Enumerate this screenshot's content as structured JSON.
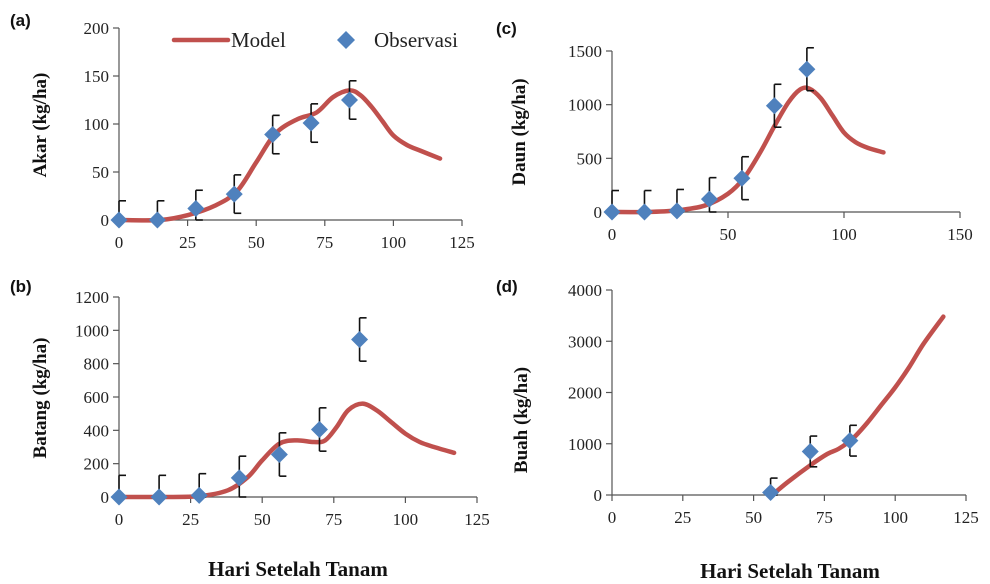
{
  "legend": {
    "model_label": "Model",
    "obs_label": "Observasi"
  },
  "xlabel_bottom": "Hari Setelah Tanam",
  "colors": {
    "model": "#c0504d",
    "observation": "#4f81bd",
    "errorbar": "#111111"
  },
  "chart_data": [
    {
      "id": "a",
      "panel_label": "(a)",
      "type": "line",
      "ylabel": "Akar (kg/ha)",
      "xlabel": "",
      "xlim": [
        0,
        125
      ],
      "xticks": [
        0,
        25,
        50,
        75,
        100,
        125
      ],
      "ylim": [
        0,
        200
      ],
      "yticks": [
        0,
        50,
        100,
        150,
        200
      ],
      "series": [
        {
          "name": "Model",
          "kind": "line",
          "x": [
            0,
            15,
            25,
            35,
            43,
            50,
            57,
            65,
            72,
            78,
            84,
            88,
            92,
            96,
            100,
            105,
            110,
            117
          ],
          "y": [
            0,
            0,
            5,
            15,
            30,
            60,
            90,
            105,
            112,
            128,
            135,
            130,
            118,
            103,
            88,
            78,
            72,
            64
          ]
        },
        {
          "name": "Observasi",
          "kind": "scatter",
          "x": [
            0,
            14,
            28,
            42,
            56,
            70,
            84
          ],
          "y": [
            0,
            0,
            12,
            27,
            89,
            101,
            125
          ],
          "err": [
            20,
            20,
            19,
            20,
            20,
            20,
            20
          ]
        }
      ]
    },
    {
      "id": "b",
      "panel_label": "(b)",
      "type": "line",
      "ylabel": "Batang (kg/ha)",
      "xlabel": "Hari Setelah Tanam",
      "xlim": [
        0,
        125
      ],
      "xticks": [
        0,
        25,
        50,
        75,
        100,
        125
      ],
      "ylim": [
        0,
        1200
      ],
      "yticks": [
        0,
        200,
        400,
        600,
        800,
        1000,
        1200
      ],
      "series": [
        {
          "name": "Model",
          "kind": "line",
          "x": [
            0,
            15,
            28,
            38,
            45,
            50,
            56,
            62,
            68,
            72,
            76,
            80,
            85,
            90,
            95,
            100,
            105,
            110,
            117
          ],
          "y": [
            0,
            0,
            5,
            40,
            120,
            220,
            320,
            340,
            330,
            340,
            420,
            520,
            560,
            520,
            450,
            380,
            330,
            300,
            265
          ]
        },
        {
          "name": "Observasi",
          "kind": "scatter",
          "x": [
            0,
            14,
            28,
            42,
            56,
            70,
            84
          ],
          "y": [
            0,
            0,
            10,
            115,
            255,
            405,
            945
          ],
          "err": [
            130,
            130,
            130,
            130,
            130,
            130,
            130
          ]
        }
      ]
    },
    {
      "id": "c",
      "panel_label": "(c)",
      "type": "line",
      "ylabel": "Daun (kg/ha)",
      "xlabel": "",
      "xlim": [
        0,
        150
      ],
      "xticks": [
        0,
        50,
        100,
        150
      ],
      "ylim": [
        0,
        1500
      ],
      "yticks": [
        0,
        500,
        1000,
        1500
      ],
      "series": [
        {
          "name": "Model",
          "kind": "line",
          "x": [
            0,
            15,
            28,
            40,
            50,
            57,
            64,
            70,
            76,
            81,
            85,
            90,
            95,
            100,
            105,
            110,
            117
          ],
          "y": [
            0,
            0,
            15,
            60,
            170,
            320,
            560,
            800,
            1020,
            1140,
            1150,
            1060,
            900,
            740,
            650,
            600,
            555
          ]
        },
        {
          "name": "Observasi",
          "kind": "scatter",
          "x": [
            0,
            14,
            28,
            42,
            56,
            70,
            84
          ],
          "y": [
            0,
            0,
            10,
            120,
            315,
            990,
            1330
          ],
          "err": [
            200,
            200,
            200,
            200,
            200,
            200,
            200
          ]
        }
      ]
    },
    {
      "id": "d",
      "panel_label": "(d)",
      "type": "line",
      "ylabel": "Buah (kg/ha)",
      "xlabel": "Hari Setelah Tanam",
      "xlim": [
        0,
        125
      ],
      "xticks": [
        0,
        25,
        50,
        75,
        100,
        125
      ],
      "ylim": [
        0,
        4000
      ],
      "yticks": [
        0,
        1000,
        2000,
        3000,
        4000
      ],
      "series": [
        {
          "name": "Model",
          "kind": "line",
          "x": [
            57,
            62,
            70,
            76,
            80,
            85,
            90,
            95,
            100,
            105,
            110,
            117
          ],
          "y": [
            20,
            250,
            580,
            800,
            900,
            1100,
            1400,
            1750,
            2100,
            2500,
            2950,
            3480
          ]
        },
        {
          "name": "Observasi",
          "kind": "scatter",
          "x": [
            56,
            70,
            84
          ],
          "y": [
            50,
            850,
            1060
          ],
          "err": [
            280,
            300,
            300
          ]
        }
      ]
    }
  ]
}
